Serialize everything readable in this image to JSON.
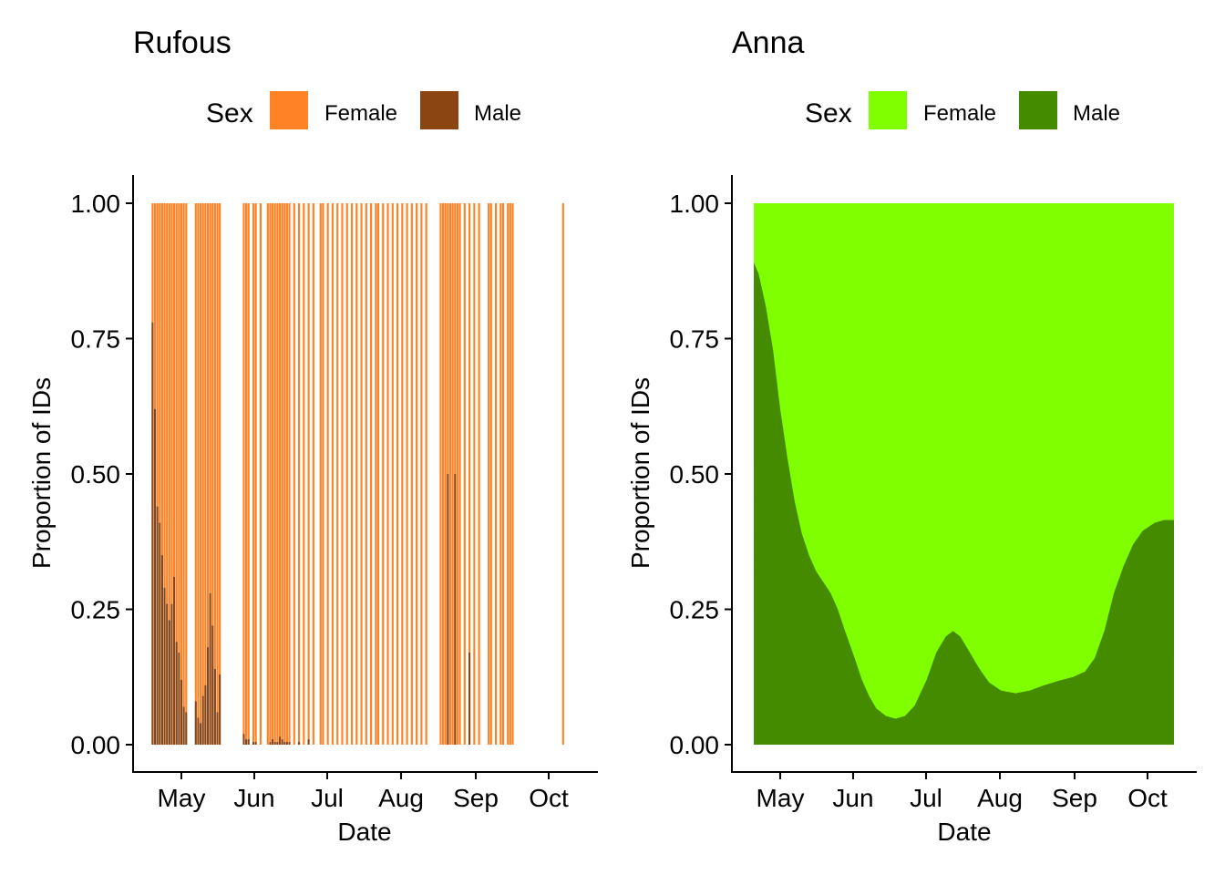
{
  "chart_data": [
    {
      "type": "bar",
      "title": "Rufous",
      "xlabel": "Date",
      "ylabel": "Proportion of IDs",
      "stacked": true,
      "grid": false,
      "legend": {
        "title": "Sex",
        "position": "top"
      },
      "x_ticks": [
        "May",
        "Jun",
        "Jul",
        "Aug",
        "Sep",
        "Oct"
      ],
      "y_ticks": [
        "0.00",
        "0.25",
        "0.50",
        "0.75",
        "1.00"
      ],
      "ylim": [
        0,
        1
      ],
      "series": [
        {
          "name": "Female",
          "color": "#FF8225"
        },
        {
          "name": "Male",
          "color": "#8B4513"
        }
      ],
      "points": [
        {
          "date": "Apr 19",
          "male": 0.78
        },
        {
          "date": "Apr 20",
          "male": 0.62
        },
        {
          "date": "Apr 21",
          "male": 0.44
        },
        {
          "date": "Apr 22",
          "male": 0.41
        },
        {
          "date": "Apr 23",
          "male": 0.35
        },
        {
          "date": "Apr 24",
          "male": 0.29
        },
        {
          "date": "Apr 25",
          "male": 0.26
        },
        {
          "date": "Apr 26",
          "male": 0.23
        },
        {
          "date": "Apr 27",
          "male": 0.26
        },
        {
          "date": "Apr 28",
          "male": 0.31
        },
        {
          "date": "Apr 29",
          "male": 0.19
        },
        {
          "date": "Apr 30",
          "male": 0.17
        },
        {
          "date": "May 1",
          "male": 0.12
        },
        {
          "date": "May 2",
          "male": 0.07
        },
        {
          "date": "May 3",
          "male": 0.06
        },
        {
          "date": "May 7",
          "male": 0.08
        },
        {
          "date": "May 8",
          "male": 0.05
        },
        {
          "date": "May 9",
          "male": 0.04
        },
        {
          "date": "May 10",
          "male": 0.09
        },
        {
          "date": "May 11",
          "male": 0.11
        },
        {
          "date": "May 12",
          "male": 0.18
        },
        {
          "date": "May 13",
          "male": 0.28
        },
        {
          "date": "May 14",
          "male": 0.22
        },
        {
          "date": "May 15",
          "male": 0.14
        },
        {
          "date": "May 16",
          "male": 0.06
        },
        {
          "date": "May 17",
          "male": 0.13
        },
        {
          "date": "May 27",
          "male": 0.02
        },
        {
          "date": "May 28",
          "male": 0.01
        },
        {
          "date": "May 29",
          "male": 0.01
        },
        {
          "date": "May 31",
          "male": 0.005
        },
        {
          "date": "Jun 1",
          "male": 0.005
        },
        {
          "date": "Jun 3",
          "male": 0.0
        },
        {
          "date": "Jun 6",
          "male": 0.0
        },
        {
          "date": "Jun 7",
          "male": 0.005
        },
        {
          "date": "Jun 8",
          "male": 0.01
        },
        {
          "date": "Jun 9",
          "male": 0.005
        },
        {
          "date": "Jun 10",
          "male": 0.005
        },
        {
          "date": "Jun 11",
          "male": 0.015
        },
        {
          "date": "Jun 12",
          "male": 0.01
        },
        {
          "date": "Jun 13",
          "male": 0.005
        },
        {
          "date": "Jun 14",
          "male": 0.005
        },
        {
          "date": "Jun 15",
          "male": 0.005
        },
        {
          "date": "Jun 17",
          "male": 0.0
        },
        {
          "date": "Jun 19",
          "male": 0.005
        },
        {
          "date": "Jun 21",
          "male": 0.0
        },
        {
          "date": "Jun 23",
          "male": 0.01
        },
        {
          "date": "Jun 25",
          "male": 0.0
        },
        {
          "date": "Jun 28",
          "male": 0.0
        },
        {
          "date": "Jun 29",
          "male": 0.0
        },
        {
          "date": "Jul 1",
          "male": 0.0
        },
        {
          "date": "Jul 3",
          "male": 0.0
        },
        {
          "date": "Jul 5",
          "male": 0.0
        },
        {
          "date": "Jul 7",
          "male": 0.0
        },
        {
          "date": "Jul 9",
          "male": 0.0
        },
        {
          "date": "Jul 11",
          "male": 0.0
        },
        {
          "date": "Jul 13",
          "male": 0.0
        },
        {
          "date": "Jul 15",
          "male": 0.0
        },
        {
          "date": "Jul 17",
          "male": 0.0
        },
        {
          "date": "Jul 19",
          "male": 0.0
        },
        {
          "date": "Jul 21",
          "male": 0.0
        },
        {
          "date": "Jul 22",
          "male": 0.0
        },
        {
          "date": "Jul 24",
          "male": 0.0
        },
        {
          "date": "Jul 26",
          "male": 0.0
        },
        {
          "date": "Jul 28",
          "male": 0.0
        },
        {
          "date": "Jul 30",
          "male": 0.0
        },
        {
          "date": "Aug 1",
          "male": 0.0
        },
        {
          "date": "Aug 3",
          "male": 0.0
        },
        {
          "date": "Aug 5",
          "male": 0.0
        },
        {
          "date": "Aug 7",
          "male": 0.0
        },
        {
          "date": "Aug 9",
          "male": 0.0
        },
        {
          "date": "Aug 11",
          "male": 0.0
        },
        {
          "date": "Aug 17",
          "male": 0.0
        },
        {
          "date": "Aug 18",
          "male": 0.0
        },
        {
          "date": "Aug 19",
          "male": 0.0
        },
        {
          "date": "Aug 20",
          "male": 0.5
        },
        {
          "date": "Aug 21",
          "male": 0.0
        },
        {
          "date": "Aug 22",
          "male": 0.0
        },
        {
          "date": "Aug 23",
          "male": 0.5
        },
        {
          "date": "Aug 24",
          "male": 0.0
        },
        {
          "date": "Aug 25",
          "male": 0.0
        },
        {
          "date": "Aug 27",
          "male": 0.0
        },
        {
          "date": "Aug 29",
          "male": 0.17
        },
        {
          "date": "Aug 31",
          "male": 0.0
        },
        {
          "date": "Sep 2",
          "male": 0.0
        },
        {
          "date": "Sep 6",
          "male": 0.0
        },
        {
          "date": "Sep 7",
          "male": 0.0
        },
        {
          "date": "Sep 9",
          "male": 0.0
        },
        {
          "date": "Sep 11",
          "male": 0.0
        },
        {
          "date": "Sep 12",
          "male": 0.0
        },
        {
          "date": "Sep 14",
          "male": 0.0
        },
        {
          "date": "Sep 15",
          "male": 0.0
        },
        {
          "date": "Sep 16",
          "male": 0.0
        },
        {
          "date": "Oct 7",
          "male": 0.0
        }
      ]
    },
    {
      "type": "area",
      "title": "Anna",
      "xlabel": "Date",
      "ylabel": "Proportion of IDs",
      "stacked": true,
      "grid": false,
      "legend": {
        "title": "Sex",
        "position": "top"
      },
      "x_ticks": [
        "May",
        "Jun",
        "Jul",
        "Aug",
        "Sep",
        "Oct"
      ],
      "y_ticks": [
        "0.00",
        "0.25",
        "0.50",
        "0.75",
        "1.00"
      ],
      "ylim": [
        0,
        1
      ],
      "series": [
        {
          "name": "Female",
          "color": "#80FF00"
        },
        {
          "name": "Male",
          "color": "#458B00"
        }
      ],
      "points": [
        {
          "date": "Apr 20",
          "male": 0.89
        },
        {
          "date": "Apr 22",
          "male": 0.87
        },
        {
          "date": "Apr 25",
          "male": 0.81
        },
        {
          "date": "Apr 28",
          "male": 0.73
        },
        {
          "date": "May 1",
          "male": 0.62
        },
        {
          "date": "May 4",
          "male": 0.53
        },
        {
          "date": "May 7",
          "male": 0.45
        },
        {
          "date": "May 10",
          "male": 0.39
        },
        {
          "date": "May 13",
          "male": 0.35
        },
        {
          "date": "May 16",
          "male": 0.32
        },
        {
          "date": "May 19",
          "male": 0.3
        },
        {
          "date": "May 22",
          "male": 0.28
        },
        {
          "date": "May 25",
          "male": 0.25
        },
        {
          "date": "May 28",
          "male": 0.21
        },
        {
          "date": "Jun 1",
          "male": 0.16
        },
        {
          "date": "Jun 4",
          "male": 0.12
        },
        {
          "date": "Jun 7",
          "male": 0.09
        },
        {
          "date": "Jun 10",
          "male": 0.067
        },
        {
          "date": "Jun 14",
          "male": 0.053
        },
        {
          "date": "Jun 18",
          "male": 0.048
        },
        {
          "date": "Jun 22",
          "male": 0.053
        },
        {
          "date": "Jun 26",
          "male": 0.072
        },
        {
          "date": "Jul 1",
          "male": 0.12
        },
        {
          "date": "Jul 5",
          "male": 0.17
        },
        {
          "date": "Jul 9",
          "male": 0.2
        },
        {
          "date": "Jul 12",
          "male": 0.21
        },
        {
          "date": "Jul 15",
          "male": 0.2
        },
        {
          "date": "Jul 19",
          "male": 0.17
        },
        {
          "date": "Jul 23",
          "male": 0.14
        },
        {
          "date": "Jul 27",
          "male": 0.115
        },
        {
          "date": "Aug 1",
          "male": 0.1
        },
        {
          "date": "Aug 7",
          "male": 0.095
        },
        {
          "date": "Aug 13",
          "male": 0.1
        },
        {
          "date": "Aug 19",
          "male": 0.11
        },
        {
          "date": "Aug 25",
          "male": 0.118
        },
        {
          "date": "Aug 31",
          "male": 0.125
        },
        {
          "date": "Sep 5",
          "male": 0.135
        },
        {
          "date": "Sep 9",
          "male": 0.16
        },
        {
          "date": "Sep 13",
          "male": 0.21
        },
        {
          "date": "Sep 17",
          "male": 0.28
        },
        {
          "date": "Sep 21",
          "male": 0.33
        },
        {
          "date": "Sep 25",
          "male": 0.37
        },
        {
          "date": "Sep 29",
          "male": 0.395
        },
        {
          "date": "Oct 4",
          "male": 0.41
        },
        {
          "date": "Oct 8",
          "male": 0.415
        },
        {
          "date": "Oct 12",
          "male": 0.415
        }
      ]
    }
  ]
}
